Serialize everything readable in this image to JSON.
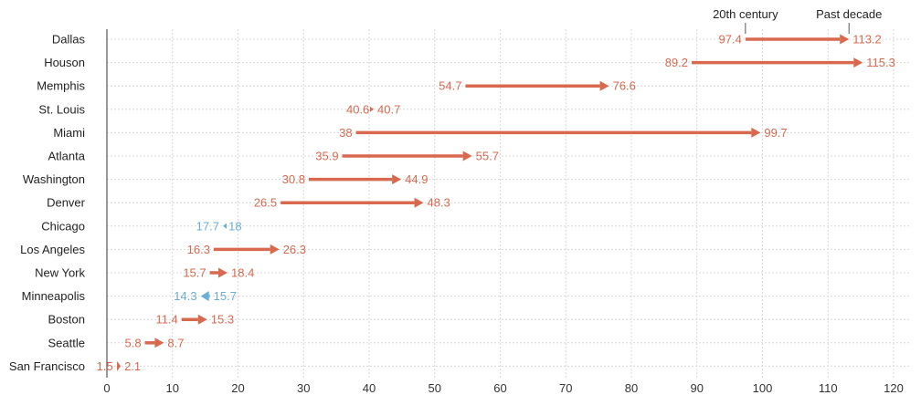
{
  "chart_data": {
    "type": "arrow-dumbbell",
    "title": "",
    "xlabel": "",
    "ylabel": "",
    "xlim": [
      0,
      120
    ],
    "x_ticks": [
      "0",
      "10",
      "20",
      "30",
      "40",
      "50",
      "60",
      "70",
      "80",
      "90",
      "100",
      "110",
      "120"
    ],
    "grid": true,
    "header": {
      "start_label": "20th century",
      "end_label": "Past decade"
    },
    "colors": {
      "increase": "#d8694f",
      "decrease": "#6aaed6",
      "grid": "#d9d9d9",
      "axis": "#555555"
    },
    "rows": [
      {
        "city": "Dallas",
        "start": 97.4,
        "end": 113.2,
        "start_label": "97.4",
        "end_label": "113.2"
      },
      {
        "city": "Houson",
        "start": 89.2,
        "end": 115.3,
        "start_label": "89.2",
        "end_label": "115.3"
      },
      {
        "city": "Memphis",
        "start": 54.7,
        "end": 76.6,
        "start_label": "54.7",
        "end_label": "76.6"
      },
      {
        "city": "St. Louis",
        "start": 40.6,
        "end": 40.7,
        "start_label": "40.6",
        "end_label": "40.7"
      },
      {
        "city": "Miami",
        "start": 38,
        "end": 99.7,
        "start_label": "38",
        "end_label": "99.7"
      },
      {
        "city": "Atlanta",
        "start": 35.9,
        "end": 55.7,
        "start_label": "35.9",
        "end_label": "55.7"
      },
      {
        "city": "Washington",
        "start": 30.8,
        "end": 44.9,
        "start_label": "30.8",
        "end_label": "44.9"
      },
      {
        "city": "Denver",
        "start": 26.5,
        "end": 48.3,
        "start_label": "26.5",
        "end_label": "48.3"
      },
      {
        "city": "Chicago",
        "start": 18,
        "end": 17.7,
        "start_label": "18",
        "end_label": "17.7"
      },
      {
        "city": "Los Angeles",
        "start": 16.3,
        "end": 26.3,
        "start_label": "16.3",
        "end_label": "26.3"
      },
      {
        "city": "New York",
        "start": 15.7,
        "end": 18.4,
        "start_label": "15.7",
        "end_label": "18.4"
      },
      {
        "city": "Minneapolis",
        "start": 15.7,
        "end": 14.3,
        "start_label": "15.7",
        "end_label": "14.3"
      },
      {
        "city": "Boston",
        "start": 11.4,
        "end": 15.3,
        "start_label": "11.4",
        "end_label": "15.3"
      },
      {
        "city": "Seattle",
        "start": 5.8,
        "end": 8.7,
        "start_label": "5.8",
        "end_label": "8.7"
      },
      {
        "city": "San Francisco",
        "start": 1.5,
        "end": 2.1,
        "start_label": "1.5",
        "end_label": "2.1"
      }
    ]
  }
}
